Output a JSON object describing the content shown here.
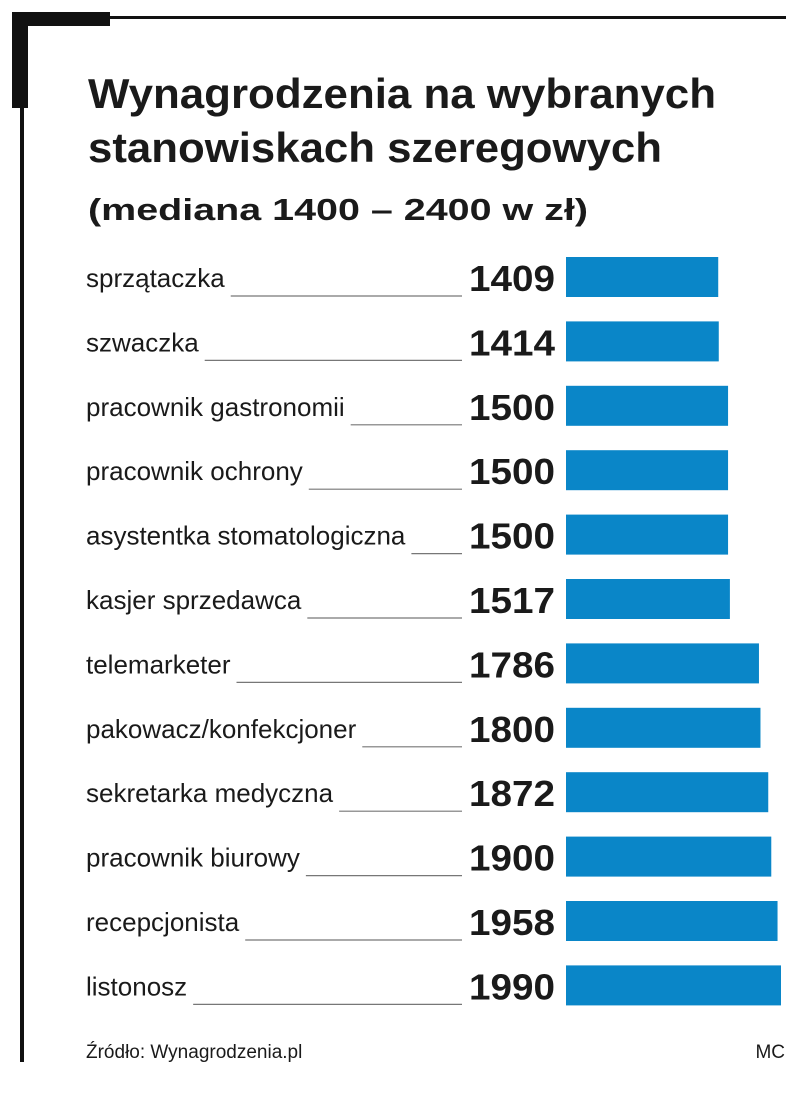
{
  "chart_data": {
    "type": "bar",
    "orientation": "horizontal",
    "title": [
      "Wynagrodzenia na wybranych",
      "stanowiskach szeregowych"
    ],
    "subtitle": "(mediana 1400 – 2400 w zł)",
    "categories": [
      "sprzątaczka",
      "szwaczka",
      "pracownik gastronomii",
      "pracownik ochrony",
      "asystentka stomatologiczna",
      "kasjer sprzedawca",
      "telemarketer",
      "pakowacz/konfekcjoner",
      "sekretarka medyczna",
      "pracownik biurowy",
      "recepcjonista",
      "listonosz"
    ],
    "values": [
      1409,
      1414,
      1500,
      1500,
      1500,
      1517,
      1786,
      1800,
      1872,
      1900,
      1958,
      1990
    ],
    "color": "#0a86c8",
    "source": "Źródło: Wynagrodzenia.pl",
    "credit": "MC"
  }
}
